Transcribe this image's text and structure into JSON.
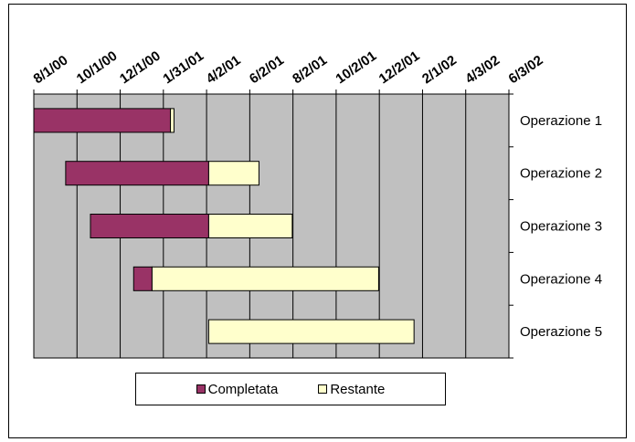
{
  "colors": {
    "completed": "#993366",
    "remaining": "#ffffcc",
    "plot_area": "#c0c0c0",
    "gridline": "#000000"
  },
  "chart_data": {
    "type": "bar",
    "orientation": "horizontal",
    "stacked": true,
    "title": "",
    "categories": [
      "Operazione 1",
      "Operazione 2",
      "Operazione 3",
      "Operazione 4",
      "Operazione 5"
    ],
    "x_tick_labels": [
      "8/1/00",
      "10/1/00",
      "12/1/00",
      "1/31/01",
      "4/2/01",
      "6/2/01",
      "8/2/01",
      "10/2/01",
      "12/2/01",
      "2/1/02",
      "4/3/02",
      "6/3/02"
    ],
    "xlim": [
      "2000-08-01",
      "2002-06-03"
    ],
    "x_axis_position": "top",
    "y_axis_position": "right",
    "grid": true,
    "legend": "bottom",
    "series": [
      {
        "name": "Completata",
        "color": "#993366",
        "start": [
          "2000-08-01",
          "2000-09-15",
          "2000-10-20",
          "2000-12-20",
          null
        ],
        "end": [
          "2001-02-10",
          "2001-04-05",
          "2001-04-05",
          "2001-01-15",
          null
        ]
      },
      {
        "name": "Restante",
        "color": "#ffffcc",
        "start": [
          "2001-02-10",
          "2001-04-05",
          "2001-04-05",
          "2001-01-15",
          "2001-04-05"
        ],
        "end": [
          "2001-02-15",
          "2001-06-15",
          "2001-08-01",
          "2001-12-01",
          "2002-01-20"
        ]
      }
    ]
  },
  "legend": {
    "completed_label": "Completata",
    "remaining_label": "Restante"
  }
}
